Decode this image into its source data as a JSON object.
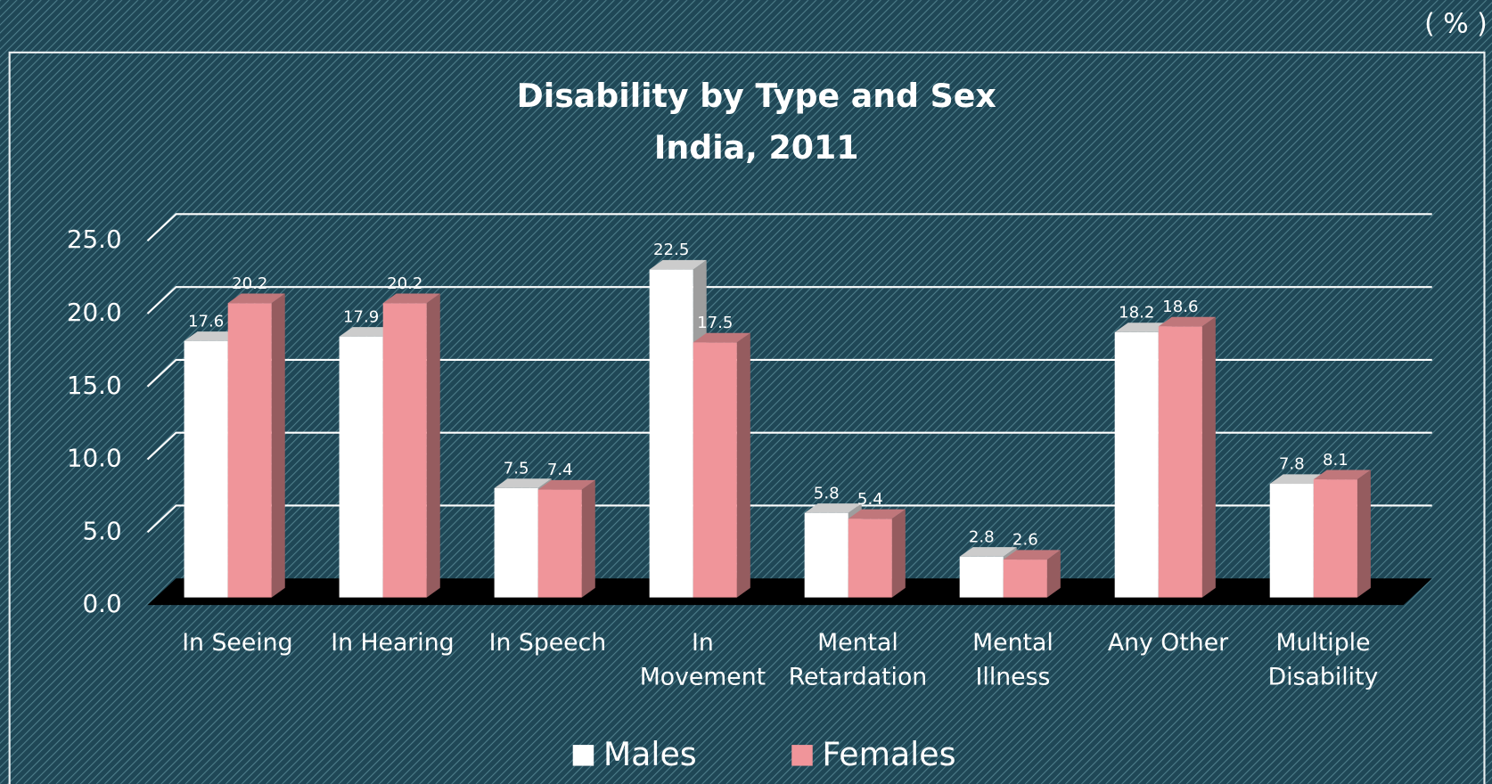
{
  "chart_data": {
    "type": "bar3d",
    "title": "Disability by Type and Sex",
    "subtitle": "India, 2011",
    "unit_note": "( % )",
    "categories": [
      "In Seeing",
      "In Hearing",
      "In Speech",
      "In\nMovement",
      "Mental\nRetardation",
      "Mental\nIllness",
      "Any Other",
      "Multiple\nDisability"
    ],
    "series": [
      {
        "name": "Males",
        "color": "#ffffff",
        "values": [
          17.6,
          17.9,
          7.5,
          22.5,
          5.8,
          2.8,
          18.2,
          7.8
        ]
      },
      {
        "name": "Females",
        "color": "#f0959a",
        "values": [
          20.2,
          20.2,
          7.4,
          17.5,
          5.4,
          2.6,
          18.6,
          8.1
        ]
      }
    ],
    "ylim": [
      0,
      25
    ],
    "yticks": [
      {
        "value": 0,
        "label": "0.0"
      },
      {
        "value": 5,
        "label": "5.0"
      },
      {
        "value": 10,
        "label": "10.0"
      },
      {
        "value": 15,
        "label": "15.0"
      },
      {
        "value": 20,
        "label": "20.0"
      },
      {
        "value": 25,
        "label": "25.0"
      }
    ],
    "grid": true,
    "legend": "bottom"
  }
}
